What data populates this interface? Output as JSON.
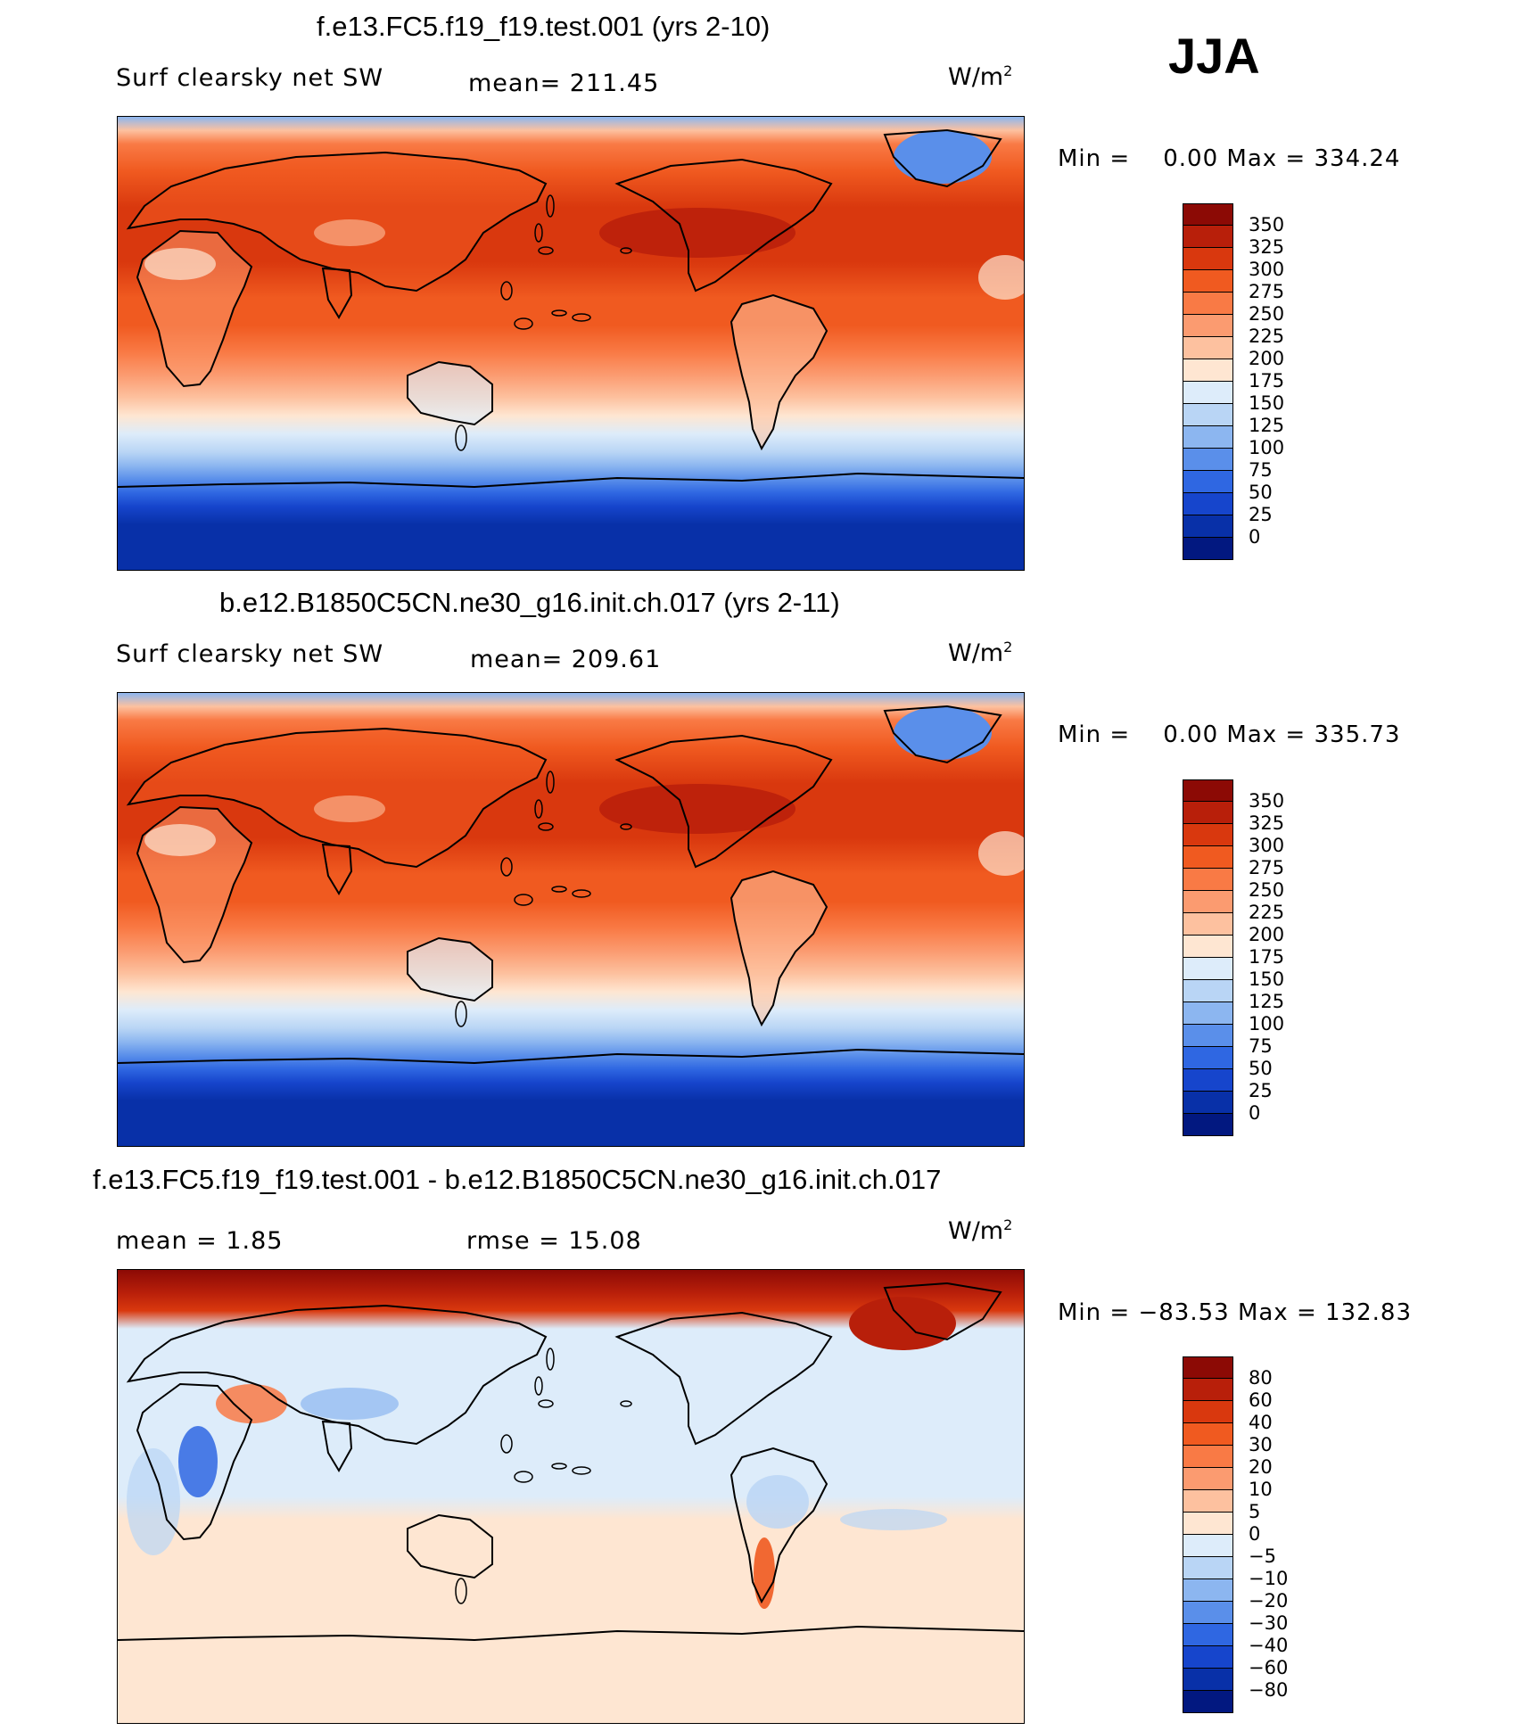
{
  "season": "JJA",
  "panels": [
    {
      "title": "f.e13.FC5.f19_f19.test.001 (yrs 2-10)",
      "variable": "Surf clearsky net SW",
      "stat": "mean=  211.45",
      "units": "W/m",
      "units_exp": "2",
      "min_label": "Min  =",
      "min_value": "0.00",
      "max_label": "Max  =",
      "max_value": "334.24",
      "levels": [
        "350",
        "325",
        "300",
        "275",
        "250",
        "225",
        "200",
        "175",
        "150",
        "125",
        "100",
        "75",
        "50",
        "25",
        "0"
      ],
      "colors": [
        "#8c0a05",
        "#b81f0a",
        "#d9380e",
        "#f05a20",
        "#f97a45",
        "#fb9b70",
        "#fdc19f",
        "#fee6d2",
        "#ddecfa",
        "#b9d5f5",
        "#8cb6f0",
        "#5a8fea",
        "#2f67e2",
        "#1645cc",
        "#0830a8",
        "#021880"
      ],
      "palette": "full"
    },
    {
      "title": "b.e12.B1850C5CN.ne30_g16.init.ch.017 (yrs 2-11)",
      "variable": "Surf clearsky net SW",
      "stat": "mean=  209.61",
      "units": "W/m",
      "units_exp": "2",
      "min_label": "Min  =",
      "min_value": "0.00",
      "max_label": "Max  =",
      "max_value": "335.73",
      "levels": [
        "350",
        "325",
        "300",
        "275",
        "250",
        "225",
        "200",
        "175",
        "150",
        "125",
        "100",
        "75",
        "50",
        "25",
        "0"
      ],
      "colors": [
        "#8c0a05",
        "#b81f0a",
        "#d9380e",
        "#f05a20",
        "#f97a45",
        "#fb9b70",
        "#fdc19f",
        "#fee6d2",
        "#ddecfa",
        "#b9d5f5",
        "#8cb6f0",
        "#5a8fea",
        "#2f67e2",
        "#1645cc",
        "#0830a8",
        "#021880"
      ],
      "palette": "full"
    },
    {
      "title": "f.e13.FC5.f19_f19.test.001 - b.e12.B1850C5CN.ne30_g16.init.ch.017",
      "stat_left": "mean  =    1.85",
      "stat_right": "rmse  =    15.08",
      "units": "W/m",
      "units_exp": "2",
      "min_label": "Min  =",
      "min_value": "−83.53",
      "max_label": "Max  =",
      "max_value": "132.83",
      "levels": [
        "80",
        "60",
        "40",
        "30",
        "20",
        "10",
        "5",
        "0",
        "−5",
        "−10",
        "−20",
        "−30",
        "−40",
        "−60",
        "−80"
      ],
      "colors": [
        "#8c0a05",
        "#b81f0a",
        "#d9380e",
        "#f05a20",
        "#f97a45",
        "#fb9b70",
        "#fdc19f",
        "#fee6d2",
        "#ddecfa",
        "#b9d5f5",
        "#8cb6f0",
        "#5a8fea",
        "#2f67e2",
        "#1645cc",
        "#0830a8",
        "#021880"
      ],
      "palette": "diff"
    }
  ]
}
